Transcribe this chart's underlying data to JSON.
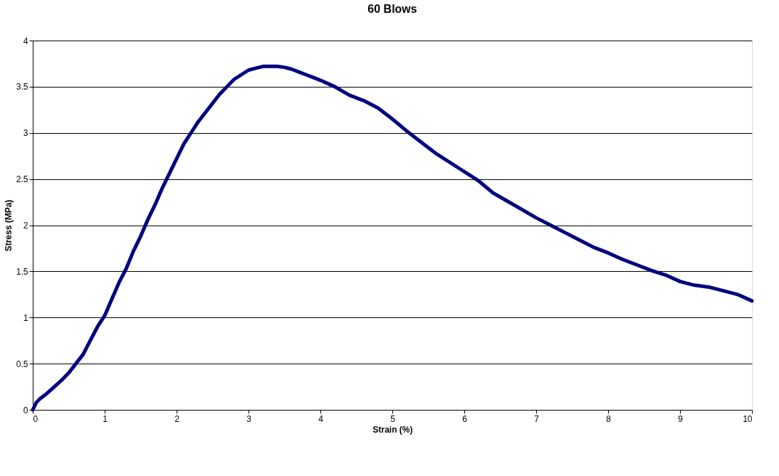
{
  "chart_data": {
    "type": "line",
    "title": "60 Blows",
    "xlabel": "Strain (%)",
    "ylabel": "Stress (MPa)",
    "xlim": [
      0,
      10
    ],
    "xticks": [
      0,
      1,
      2,
      3,
      4,
      5,
      6,
      7,
      8,
      9,
      10
    ],
    "ylim": [
      0,
      4
    ],
    "yticks": [
      0,
      0.5,
      1,
      1.5,
      2,
      2.5,
      3,
      3.5,
      4
    ],
    "grid": "y",
    "legend": false,
    "marker": "none",
    "line_style": "solid",
    "x": [
      0,
      0.05,
      0.1,
      0.2,
      0.3,
      0.4,
      0.5,
      0.6,
      0.7,
      0.8,
      0.9,
      1.0,
      1.1,
      1.2,
      1.3,
      1.4,
      1.5,
      1.6,
      1.7,
      1.8,
      1.9,
      2.0,
      2.1,
      2.2,
      2.3,
      2.4,
      2.5,
      2.6,
      2.7,
      2.8,
      2.9,
      3.0,
      3.1,
      3.2,
      3.3,
      3.4,
      3.5,
      3.6,
      3.7,
      3.8,
      3.9,
      4.0,
      4.2,
      4.4,
      4.6,
      4.8,
      5.0,
      5.2,
      5.4,
      5.6,
      5.8,
      6.0,
      6.2,
      6.4,
      6.6,
      6.8,
      7.0,
      7.2,
      7.4,
      7.6,
      7.8,
      8.0,
      8.2,
      8.4,
      8.6,
      8.8,
      9.0,
      9.2,
      9.4,
      9.6,
      9.8,
      10
    ],
    "series": [
      {
        "color": "#000080",
        "values": [
          0,
          0.08,
          0.12,
          0.18,
          0.25,
          0.32,
          0.4,
          0.5,
          0.6,
          0.75,
          0.9,
          1.02,
          1.2,
          1.38,
          1.53,
          1.72,
          1.88,
          2.06,
          2.22,
          2.4,
          2.56,
          2.72,
          2.88,
          3.0,
          3.12,
          3.22,
          3.32,
          3.42,
          3.5,
          3.58,
          3.63,
          3.68,
          3.7,
          3.72,
          3.72,
          3.72,
          3.71,
          3.69,
          3.66,
          3.63,
          3.6,
          3.57,
          3.5,
          3.41,
          3.35,
          3.27,
          3.15,
          3.02,
          2.9,
          2.78,
          2.68,
          2.58,
          2.48,
          2.35,
          2.26,
          2.17,
          2.08,
          2.0,
          1.92,
          1.84,
          1.76,
          1.7,
          1.63,
          1.57,
          1.51,
          1.46,
          1.39,
          1.35,
          1.33,
          1.29,
          1.25,
          1.18
        ]
      }
    ]
  }
}
